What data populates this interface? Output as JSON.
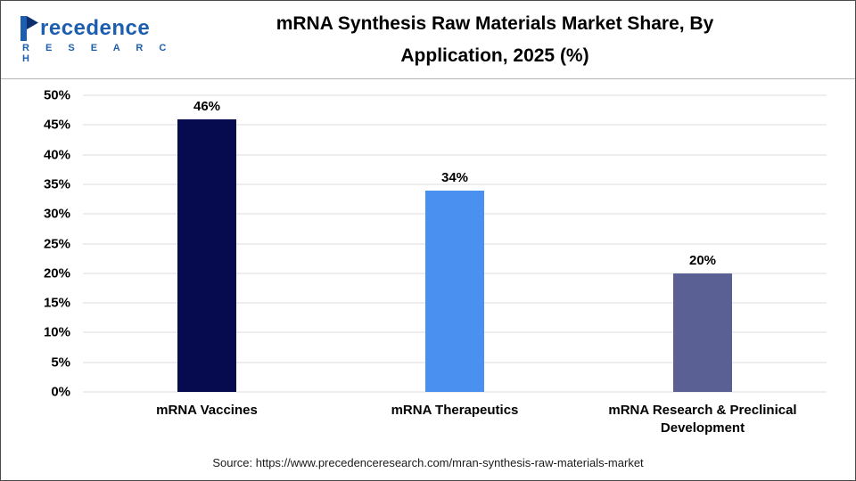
{
  "header": {
    "title_line1": "mRNA Synthesis Raw Materials Market Share, By",
    "title_line2": "Application, 2025 (%)",
    "logo": {
      "name": "Precedence Research",
      "word_rest": "recedence",
      "subword": "R E S E A R C H"
    }
  },
  "chart_data": {
    "type": "bar",
    "title": "mRNA Synthesis Raw Materials Market Share, By Application, 2025 (%)",
    "categories": [
      "mRNA Vaccines",
      "mRNA Therapeutics",
      "mRNA Research & Preclinical Development"
    ],
    "values": [
      46,
      34,
      20
    ],
    "value_labels": [
      "46%",
      "34%",
      "20%"
    ],
    "bar_colors": [
      "#060a4e",
      "#4a90f0",
      "#5a5f94"
    ],
    "xlabel": "",
    "ylabel": "",
    "ylim": [
      0,
      50
    ],
    "ytick_step": 5,
    "yticks": [
      "0%",
      "5%",
      "10%",
      "15%",
      "20%",
      "25%",
      "30%",
      "35%",
      "40%",
      "45%",
      "50%"
    ],
    "grid": true,
    "legend": "none"
  },
  "footer": {
    "source": "Source: https://www.precedenceresearch.com/mran-synthesis-raw-materials-market"
  }
}
